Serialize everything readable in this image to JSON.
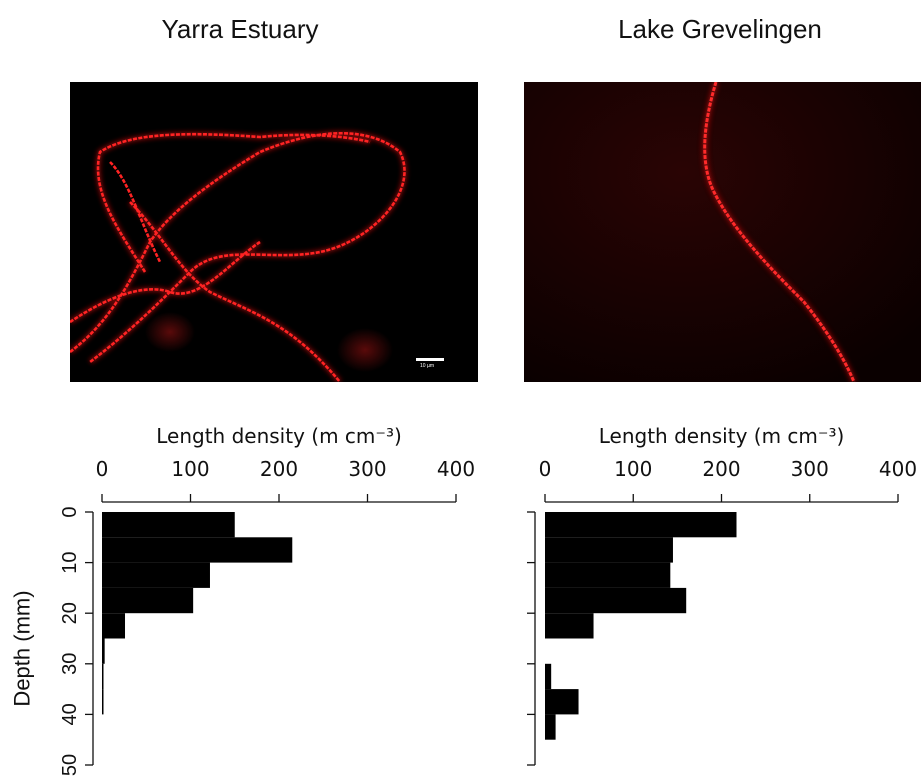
{
  "panels": [
    {
      "title": "Yarra Estuary",
      "scale_bar_label": "10 µm"
    },
    {
      "title": "Lake Grevelingen",
      "scale_bar_label": ""
    }
  ],
  "colors": {
    "filament": "#e0161c",
    "background": "#000000",
    "bars": "#000000"
  },
  "chart_data": [
    {
      "type": "bar",
      "orientation": "horizontal",
      "title": "",
      "xlabel": "Length density (m cm⁻³)",
      "ylabel": "Depth (mm)",
      "xlim": [
        0,
        400
      ],
      "ylim": [
        50,
        0
      ],
      "xticks": [
        0,
        100,
        200,
        300,
        400
      ],
      "yticks": [
        0,
        10,
        20,
        30,
        40,
        50
      ],
      "bins": [
        [
          0,
          5
        ],
        [
          5,
          10
        ],
        [
          10,
          15
        ],
        [
          15,
          20
        ],
        [
          20,
          25
        ],
        [
          25,
          30
        ],
        [
          30,
          35
        ],
        [
          35,
          40
        ]
      ],
      "values": [
        150,
        215,
        122,
        103,
        26,
        3,
        1,
        1
      ]
    },
    {
      "type": "bar",
      "orientation": "horizontal",
      "title": "",
      "xlabel": "Length density (m cm⁻³)",
      "ylabel": "",
      "xlim": [
        0,
        400
      ],
      "ylim": [
        50,
        0
      ],
      "xticks": [
        0,
        100,
        200,
        300,
        400
      ],
      "yticks": [
        0,
        10,
        20,
        30,
        40,
        50
      ],
      "bins": [
        [
          0,
          5
        ],
        [
          5,
          10
        ],
        [
          10,
          15
        ],
        [
          15,
          20
        ],
        [
          20,
          25
        ],
        [
          25,
          30
        ],
        [
          30,
          35
        ],
        [
          35,
          40
        ],
        [
          40,
          45
        ]
      ],
      "values": [
        217,
        145,
        142,
        160,
        55,
        0,
        7,
        38,
        12
      ]
    }
  ]
}
